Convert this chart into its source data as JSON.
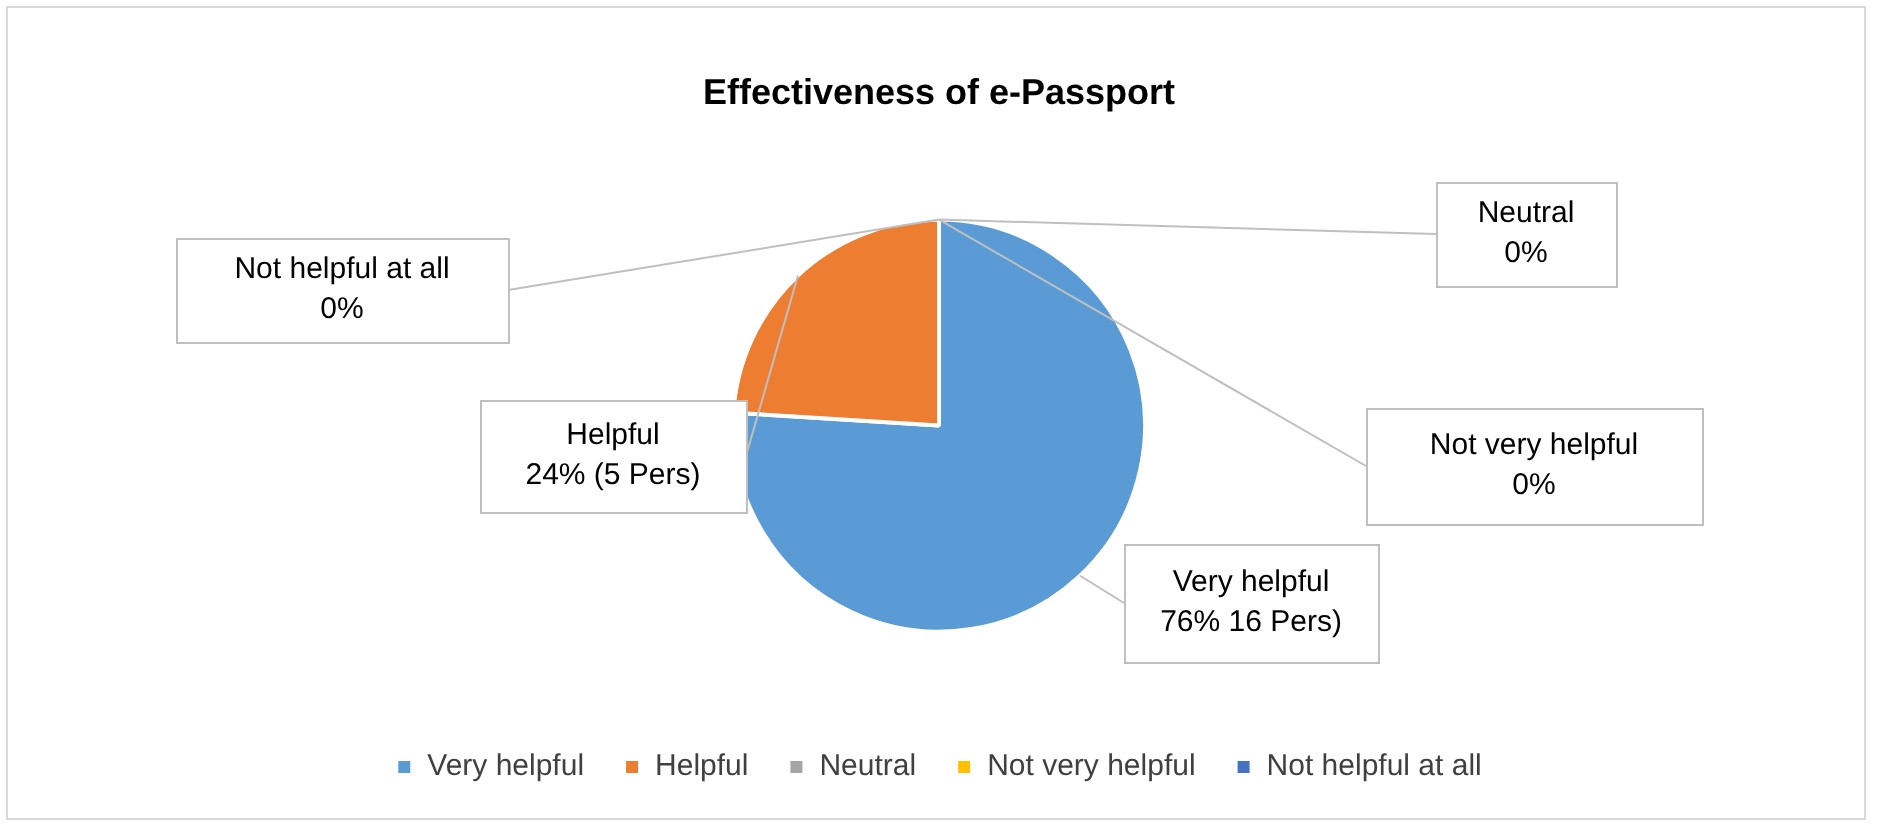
{
  "chart_data": {
    "type": "pie",
    "title": "Effectiveness of e-Passport",
    "categories": [
      "Very helpful",
      "Helpful",
      "Neutral",
      "Not very helpful",
      "Not helpful at all"
    ],
    "values": [
      76,
      24,
      0,
      0,
      0
    ],
    "value_labels": [
      "76% 16 Pers)",
      "24% (5 Pers)",
      "0%",
      "0%",
      "0%"
    ],
    "colors": [
      "#5b9bd5",
      "#ed7d31",
      "#a5a5a5",
      "#ffc000",
      "#4472c4"
    ],
    "legend": "bottom"
  }
}
